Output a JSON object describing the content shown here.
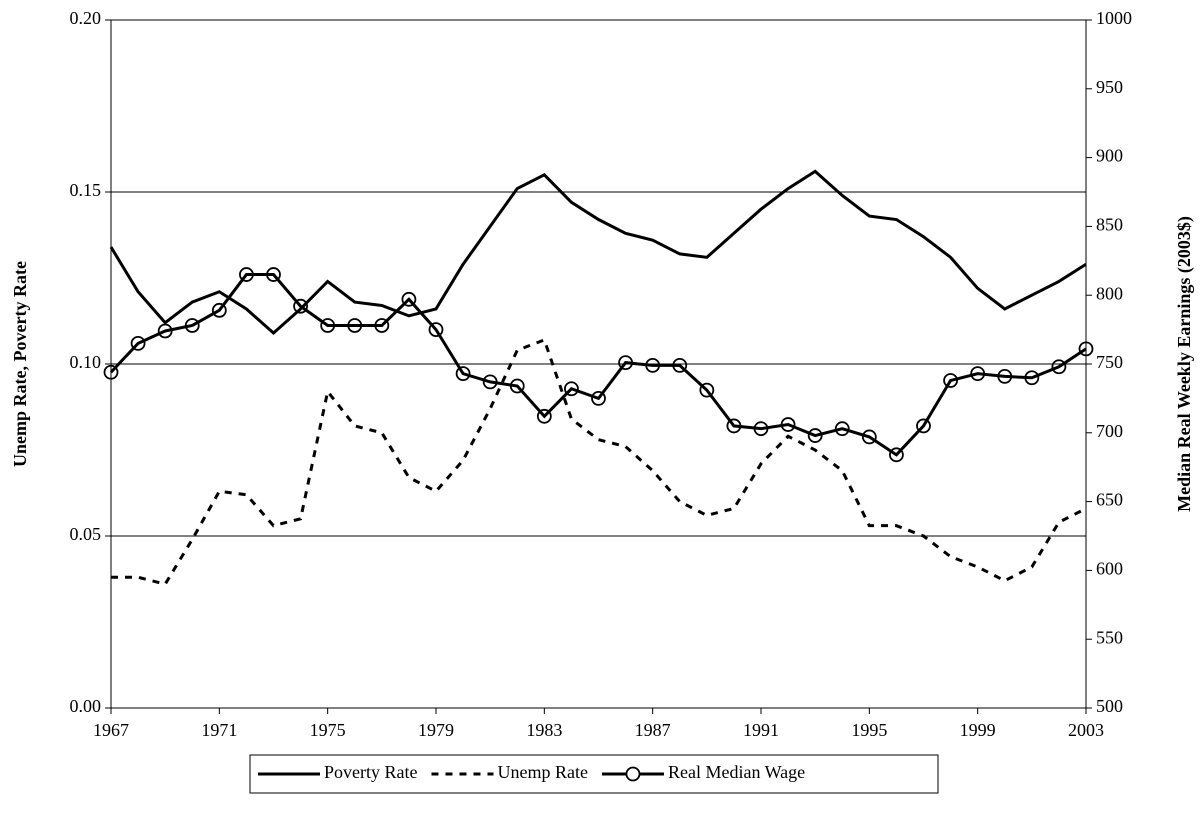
{
  "chart_data": {
    "type": "line",
    "y_label": "Unemp Rate, Poverty Rate",
    "y2_label": "Median Real Weekly Earnings (2003$)",
    "x": [
      1967,
      1968,
      1969,
      1970,
      1971,
      1972,
      1973,
      1974,
      1975,
      1976,
      1977,
      1978,
      1979,
      1980,
      1981,
      1982,
      1983,
      1984,
      1985,
      1986,
      1987,
      1988,
      1989,
      1990,
      1991,
      1992,
      1993,
      1994,
      1995,
      1996,
      1997,
      1998,
      1999,
      2000,
      2001,
      2002,
      2003
    ],
    "xlim": [
      1967,
      2003
    ],
    "xticks": [
      1967,
      1971,
      1975,
      1979,
      1983,
      1987,
      1991,
      1995,
      1999,
      2003
    ],
    "ylim": [
      0,
      0.2
    ],
    "yticks": [
      {
        "value": 0,
        "label": "0.00"
      },
      {
        "value": 0.05,
        "label": "0.05"
      },
      {
        "value": 0.1,
        "label": "0.10"
      },
      {
        "value": 0.15,
        "label": "0.15"
      },
      {
        "value": 0.2,
        "label": "0.20"
      }
    ],
    "y2lim": [
      500,
      1000
    ],
    "y2ticks": [
      500,
      550,
      600,
      650,
      700,
      750,
      800,
      850,
      900,
      950,
      1000
    ],
    "grid": true,
    "legend": "bottom",
    "series": [
      {
        "name": "Poverty Rate",
        "color": "#000000",
        "dash": "solid",
        "marker": "none",
        "values": [
          0.134,
          0.121,
          0.112,
          0.118,
          0.121,
          0.116,
          0.109,
          0.116,
          0.124,
          0.118,
          0.117,
          0.114,
          0.116,
          0.129,
          0.14,
          0.151,
          0.155,
          0.147,
          0.142,
          0.138,
          0.136,
          0.132,
          0.131,
          0.138,
          0.145,
          0.151,
          0.156,
          0.149,
          0.143,
          0.142,
          0.137,
          0.131,
          0.122,
          0.116,
          0.12,
          0.124,
          0.129
        ]
      },
      {
        "name": "Unemp Rate",
        "color": "#000000",
        "dash": "dashed",
        "marker": "none",
        "values": [
          0.038,
          0.038,
          0.036,
          0.049,
          0.063,
          0.062,
          0.053,
          0.055,
          0.092,
          0.082,
          0.08,
          0.067,
          0.063,
          0.072,
          0.087,
          0.104,
          0.107,
          0.084,
          0.078,
          0.076,
          0.069,
          0.06,
          0.056,
          0.058,
          0.071,
          0.079,
          0.075,
          0.069,
          0.053,
          0.053,
          0.05,
          0.044,
          0.041,
          0.037,
          0.041,
          0.054,
          0.058
        ]
      },
      {
        "name": "Real Median Wage",
        "color": "#000000",
        "dash": "solid",
        "marker": "circle",
        "axis": "y2",
        "values": [
          744,
          765,
          774,
          778,
          789,
          815,
          815,
          792,
          778,
          778,
          778,
          797,
          775,
          743,
          737,
          734,
          712,
          732,
          725,
          751,
          749,
          749,
          731,
          705,
          703,
          706,
          698,
          703,
          697,
          684,
          705,
          738,
          743,
          741,
          740,
          748,
          761
        ]
      }
    ]
  }
}
